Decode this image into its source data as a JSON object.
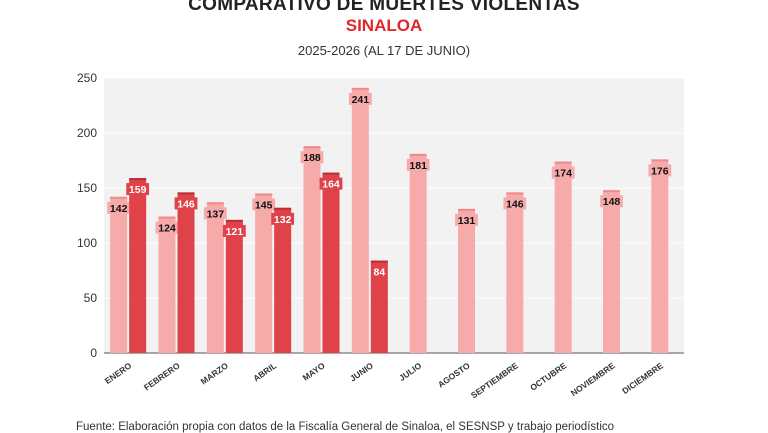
{
  "header": {
    "title": "COMPARATIVO DE MUERTES VIOLENTAS",
    "subtitle": "SINALOA",
    "period": "2025-2026 (AL 17 DE JUNIO)"
  },
  "source": "Fuente: Elaboración propia con datos de la Fiscalía General de Sinaloa, el SESNSP y trabajo periodístico",
  "colors": {
    "series_2025": "#f7aaaa",
    "series_2026": "#e0424a",
    "plot_bg": "#f2f2f2",
    "title_red": "#e0282c"
  },
  "chart_data": {
    "type": "bar",
    "categories": [
      "ENERO",
      "FEBRERO",
      "MARZO",
      "ABRIL",
      "MAYO",
      "JUNIO",
      "JULIO",
      "AGOSTO",
      "SEPTIEMBRE",
      "OCTUBRE",
      "NOVIEMBRE",
      "DICIEMBRE"
    ],
    "series": [
      {
        "values": [
          142,
          124,
          137,
          145,
          188,
          241,
          181,
          131,
          146,
          174,
          148,
          176
        ]
      },
      {
        "values": [
          159,
          146,
          121,
          132,
          164,
          84,
          null,
          null,
          null,
          null,
          null,
          null
        ]
      }
    ],
    "ylim": [
      0,
      250
    ],
    "yticks": [
      0,
      50,
      100,
      150,
      200,
      250
    ],
    "grid": true,
    "data_labels": true
  }
}
